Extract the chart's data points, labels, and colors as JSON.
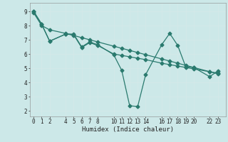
{
  "xlabel": "Humidex (Indice chaleur)",
  "bg_color": "#cce8e8",
  "grid_color": "#d4e8e8",
  "line_color": "#2a7a6e",
  "xticks": [
    0,
    1,
    2,
    4,
    5,
    6,
    7,
    8,
    10,
    11,
    12,
    13,
    14,
    16,
    17,
    18,
    19,
    20,
    22,
    23
  ],
  "yticks": [
    2,
    3,
    4,
    5,
    6,
    7,
    8,
    9
  ],
  "xlim": [
    -0.5,
    24.0
  ],
  "ylim": [
    1.6,
    9.6
  ],
  "line1_x": [
    0,
    1,
    2,
    4,
    5,
    6,
    7,
    8,
    10,
    11,
    12,
    13,
    14,
    16,
    17,
    18,
    19,
    20,
    22,
    23
  ],
  "line1_y": [
    9.0,
    8.1,
    6.9,
    7.4,
    7.4,
    6.5,
    6.85,
    6.65,
    5.95,
    4.85,
    2.35,
    2.3,
    4.55,
    6.65,
    7.45,
    6.6,
    5.1,
    5.05,
    4.4,
    4.8
  ],
  "line2_x": [
    0,
    1,
    2,
    4,
    5,
    6,
    7,
    8,
    10,
    11,
    12,
    13,
    14,
    16,
    17,
    18,
    19,
    20,
    22,
    23
  ],
  "line2_y": [
    8.9,
    8.0,
    7.7,
    7.45,
    7.3,
    7.15,
    7.0,
    6.85,
    6.55,
    6.4,
    6.25,
    6.1,
    5.95,
    5.65,
    5.5,
    5.35,
    5.2,
    5.05,
    4.75,
    4.6
  ],
  "line3_x": [
    0,
    1,
    2,
    4,
    5,
    6,
    7,
    8,
    10,
    11,
    12,
    13,
    14,
    16,
    17,
    18,
    19,
    20,
    22,
    23
  ],
  "line3_y": [
    9.0,
    8.1,
    6.9,
    7.4,
    7.35,
    6.45,
    6.8,
    6.6,
    6.0,
    5.9,
    5.8,
    5.7,
    5.6,
    5.35,
    5.25,
    5.15,
    5.05,
    4.95,
    4.75,
    4.65
  ],
  "marker": "D",
  "markersize": 2.5,
  "linewidth": 0.9
}
